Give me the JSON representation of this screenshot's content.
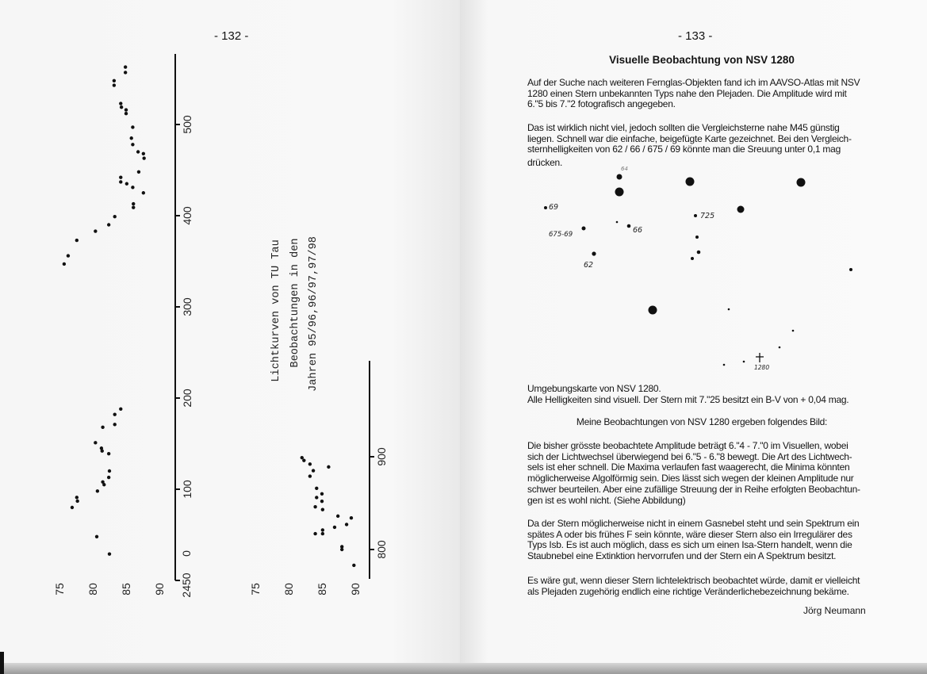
{
  "left_page": {
    "page_number": "- 132 -",
    "figure": {
      "title_lines": [
        "Lichtkurven von TU Tau",
        "Beobachtungen in den",
        "Jahren 95/96,96/97,97/98"
      ],
      "axis1_ticks": [
        "0",
        "100",
        "200",
        "300",
        "400",
        "500"
      ],
      "axis1_prefix": "2450",
      "axis2_ticks": [
        "800",
        "900"
      ],
      "mag_ticks": [
        "75",
        "80",
        "85",
        "90"
      ]
    }
  },
  "chart_data": [
    {
      "type": "scatter",
      "title": "Lichtkurven von TU Tau",
      "xlabel": "",
      "ylabel": "",
      "x_ticks": [
        "2450 0",
        "100",
        "200",
        "300",
        "400",
        "500"
      ],
      "y_ticks": [
        "75",
        "80",
        "85",
        "90"
      ],
      "xlim": [
        0,
        570
      ],
      "ylim": [
        7.5,
        9.0
      ],
      "points": [
        [
          563,
          8.49
        ],
        [
          557,
          8.49
        ],
        [
          548,
          8.32
        ],
        [
          543,
          8.32
        ],
        [
          523,
          8.42
        ],
        [
          519,
          8.43
        ],
        [
          516,
          8.5
        ],
        [
          512,
          8.5
        ],
        [
          497,
          8.6
        ],
        [
          485,
          8.58
        ],
        [
          478,
          8.6
        ],
        [
          470,
          8.68
        ],
        [
          468,
          8.76
        ],
        [
          463,
          8.77
        ],
        [
          448,
          8.69
        ],
        [
          442,
          8.42
        ],
        [
          437,
          8.42
        ],
        [
          435,
          8.51
        ],
        [
          431,
          8.6
        ],
        [
          425,
          8.76
        ],
        [
          413,
          8.61
        ],
        [
          409,
          8.61
        ],
        [
          399,
          8.33
        ],
        [
          390,
          8.24
        ],
        [
          383,
          8.04
        ],
        [
          373,
          7.76
        ],
        [
          356,
          7.63
        ],
        [
          347,
          7.57
        ],
        [
          188,
          8.42
        ],
        [
          182,
          8.33
        ],
        [
          171,
          8.33
        ],
        [
          168,
          8.15
        ],
        [
          151,
          8.04
        ],
        [
          145,
          8.13
        ],
        [
          142,
          8.14
        ],
        [
          139,
          8.24
        ],
        [
          120,
          8.25
        ],
        [
          113,
          8.24
        ],
        [
          108,
          8.15
        ],
        [
          105,
          8.17
        ],
        [
          98,
          8.07
        ],
        [
          91,
          7.76
        ],
        [
          87,
          7.77
        ],
        [
          80,
          7.69
        ],
        [
          48,
          8.06
        ],
        [
          29,
          8.25
        ]
      ]
    },
    {
      "type": "scatter",
      "xlabel": "",
      "ylabel": "",
      "x_ticks": [
        "800",
        "900"
      ],
      "y_ticks": [
        "75",
        "80",
        "85",
        "90"
      ],
      "xlim": [
        770,
        930
      ],
      "ylim": [
        7.5,
        9.0
      ],
      "points": [
        [
          899,
          8.2
        ],
        [
          896,
          8.23
        ],
        [
          892,
          8.32
        ],
        [
          889,
          8.6
        ],
        [
          885,
          8.37
        ],
        [
          879,
          8.32
        ],
        [
          866,
          8.42
        ],
        [
          856,
          8.42
        ],
        [
          860,
          8.5
        ],
        [
          852,
          8.5
        ],
        [
          846,
          8.4
        ],
        [
          843,
          8.51
        ],
        [
          836,
          8.74
        ],
        [
          834,
          8.94
        ],
        [
          827,
          8.87
        ],
        [
          824,
          8.69
        ],
        [
          821,
          8.51
        ],
        [
          817,
          8.4
        ],
        [
          817,
          8.51
        ],
        [
          803,
          8.8
        ],
        [
          800,
          8.8
        ],
        [
          783,
          8.98
        ]
      ]
    }
  ],
  "right_page": {
    "page_number": "- 133 -",
    "title": "Visuelle Beobachtung von NSV 1280",
    "para1": [
      "Auf der Suche nach weiteren Fernglas-Objekten fand ich im AAVSO-Atlas mit  NSV",
      "1280 einen Stern unbekannten Typs nahe den Plejaden. Die Amplitude  wird mit",
      "6.\"5  bis  7.\"2  fotografisch angegeben."
    ],
    "para2": [
      "Das ist wirklich nicht viel,  jedoch sollten die Vergleichsterne nahe M45 günstig",
      "liegen. Schnell war die  einfache, beigefügte Karte gezeichnet. Bei den Vergleich-",
      "sternhelligkeiten von  62 / 66 / 675 / 69 könnte man die Sreuung unter 0,1 mag",
      "drücken."
    ],
    "star_map": {
      "labels": [
        "64",
        "69",
        "725",
        "66",
        "675-69",
        "62",
        "1280"
      ]
    },
    "caption": [
      "Umgebungskarte von NSV  1280.",
      "Alle Helligkeiten sind visuell. Der Stern mit 7.\"25 besitzt ein B-V von + 0,04 mag."
    ],
    "subheading": "Meine Beobachtungen von NSV 1280 ergeben folgendes Bild:",
    "para3": [
      "Die bisher  grösste beobachtete Amplitude beträgt 6.\"4 - 7.\"0 im Visuellen, wobei",
      "sich der Lichtwechsel überwiegend bei 6.\"5 - 6.\"8 bewegt. Die Art des Lichtwech-",
      "sels ist eher schnell. Die Maxima verlaufen fast waagerecht, die Minima könnten",
      "möglicherweise Algolförmig sein. Dies lässt sich wegen der kleinen Amplitude nur",
      "schwer beurteilen. Aber eine zufällige Streuung  der in Reihe erfolgten Beobachtun-",
      "gen ist es wohl nicht. (Siehe Abbildung)"
    ],
    "para4": [
      "Da der Stern möglicherweise nicht in einem Gasnebel steht und sein Spektrum ein",
      "spätes A oder bis frühes F sein könnte, wäre dieser Stern also ein Irregulärer des",
      "Typs Isb. Es ist auch möglich, dass es sich um einen Isa-Stern handelt, wenn die",
      "Staubnebel eine Extinktion hervorrufen und der Stern ein A Spektrum besitzt."
    ],
    "para5": [
      "Es wäre gut, wenn dieser Stern lichtelektrisch beobachtet würde, damit er vielleicht",
      "als Plejaden zugehörig endlich eine richtige Veränderlichebezeichnung bekäme."
    ],
    "author": "Jörg Neumann"
  }
}
